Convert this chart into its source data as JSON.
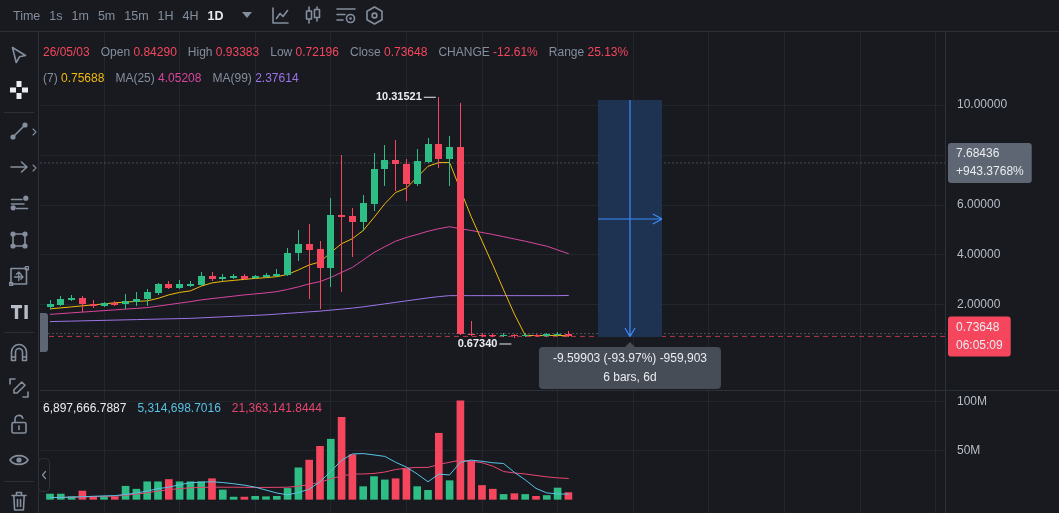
{
  "chart_data": [
    {
      "type": "candlestick",
      "categories": [
        null,
        null,
        null,
        null,
        null,
        null,
        null,
        null,
        null,
        null,
        null,
        null,
        null,
        null,
        null,
        null,
        null,
        null,
        null,
        null,
        null,
        null,
        null,
        null,
        null,
        null,
        null,
        null,
        null,
        null,
        null,
        null,
        null,
        null,
        null,
        null,
        null,
        null,
        null,
        null,
        null,
        null,
        null,
        null,
        null,
        null,
        null,
        null,
        null
      ],
      "ohlc": [
        [
          1.9,
          2.17,
          1.86,
          2.04
        ],
        [
          1.99,
          2.32,
          1.97,
          2.22
        ],
        [
          2.18,
          2.36,
          2.16,
          2.26
        ],
        [
          2.26,
          2.34,
          1.73,
          2.02
        ],
        [
          2.05,
          2.16,
          1.89,
          1.97
        ],
        [
          1.97,
          2.09,
          1.95,
          2.06
        ],
        [
          2.09,
          2.12,
          1.99,
          2.01
        ],
        [
          2.05,
          2.42,
          1.84,
          2.16
        ],
        [
          2.1,
          2.5,
          1.99,
          2.25
        ],
        [
          2.22,
          2.6,
          1.99,
          2.5
        ],
        [
          2.46,
          2.86,
          2.42,
          2.82
        ],
        [
          2.82,
          2.93,
          2.64,
          2.69
        ],
        [
          2.69,
          2.96,
          2.64,
          2.84
        ],
        [
          2.77,
          2.93,
          2.74,
          2.85
        ],
        [
          2.81,
          3.29,
          2.78,
          3.16
        ],
        [
          3.16,
          3.29,
          2.98,
          3.04
        ],
        [
          3.02,
          3.22,
          2.98,
          3.1
        ],
        [
          3.06,
          3.21,
          3.04,
          3.17
        ],
        [
          3.16,
          3.2,
          3.02,
          3.04
        ],
        [
          3.06,
          3.18,
          3.04,
          3.16
        ],
        [
          3.1,
          3.25,
          3.08,
          3.2
        ],
        [
          3.16,
          3.42,
          3.13,
          3.25
        ],
        [
          3.2,
          4.24,
          3.16,
          4.07
        ],
        [
          4.07,
          4.96,
          3.77,
          4.43
        ],
        [
          4.43,
          5.2,
          2.26,
          4.2
        ],
        [
          4.24,
          4.53,
          1.86,
          3.46
        ],
        [
          3.46,
          6.27,
          2.73,
          5.6
        ],
        [
          5.6,
          7.97,
          2.53,
          5.52
        ],
        [
          5.56,
          5.87,
          3.93,
          5.33
        ],
        [
          5.33,
          6.4,
          4.97,
          6.1
        ],
        [
          6.04,
          8.07,
          5.8,
          7.44
        ],
        [
          7.43,
          8.37,
          6.8,
          7.81
        ],
        [
          7.81,
          8.58,
          6.6,
          7.64
        ],
        [
          7.64,
          7.81,
          6.2,
          6.86
        ],
        [
          6.86,
          8.23,
          6.78,
          7.75
        ],
        [
          7.74,
          8.65,
          7.71,
          8.43
        ],
        [
          8.43,
          10.31521,
          7.5,
          7.85
        ],
        [
          7.85,
          8.74,
          6.78,
          8.31
        ],
        [
          8.31,
          10.08,
          0.8,
          0.82
        ],
        [
          0.84,
          1.35,
          0.76,
          0.78
        ],
        [
          0.8,
          0.86,
          0.74,
          0.76
        ],
        [
          0.78,
          0.83,
          0.72,
          0.74
        ],
        [
          0.74,
          0.84,
          0.72,
          0.8
        ],
        [
          0.8,
          0.82,
          0.6734,
          0.76
        ],
        [
          0.76,
          0.84,
          0.74,
          0.8
        ],
        [
          0.8,
          0.83,
          0.74,
          0.76
        ],
        [
          0.76,
          0.85,
          0.74,
          0.82
        ],
        [
          0.82,
          0.88,
          0.79,
          0.84
        ],
        [
          0.8429,
          0.93383,
          0.72196,
          0.73648
        ]
      ],
      "colors": [
        "#2ebd85",
        "#2ebd85",
        "#2ebd85",
        "#f6465d",
        "#f6465d",
        "#2ebd85",
        "#f6465d",
        "#2ebd85",
        "#2ebd85",
        "#2ebd85",
        "#2ebd85",
        "#f6465d",
        "#2ebd85",
        "#2ebd85",
        "#2ebd85",
        "#f6465d",
        "#2ebd85",
        "#2ebd85",
        "#f6465d",
        "#2ebd85",
        "#2ebd85",
        "#2ebd85",
        "#2ebd85",
        "#2ebd85",
        "#f6465d",
        "#f6465d",
        "#2ebd85",
        "#f6465d",
        "#f6465d",
        "#2ebd85",
        "#2ebd85",
        "#2ebd85",
        "#f6465d",
        "#f6465d",
        "#2ebd85",
        "#2ebd85",
        "#f6465d",
        "#2ebd85",
        "#f6465d",
        "#f6465d",
        "#f6465d",
        "#f6465d",
        "#2ebd85",
        "#f6465d",
        "#2ebd85",
        "#f6465d",
        "#2ebd85",
        "#2ebd85",
        "#f6465d"
      ],
      "series": [
        {
          "type": "line",
          "color": "#f0b90b",
          "values": [
            1.84,
            1.88,
            1.92,
            1.96,
            2.0,
            2.04,
            2.08,
            2.11,
            2.14,
            2.16,
            2.26,
            2.4,
            2.5,
            2.56,
            2.75,
            2.88,
            2.94,
            2.98,
            3.02,
            3.06,
            3.09,
            3.13,
            3.22,
            3.4,
            3.6,
            3.72,
            4.1,
            4.45,
            4.65,
            4.98,
            5.5,
            6.05,
            6.5,
            6.68,
            null,
            7.55,
            7.7,
            7.7,
            null,
            5.53,
            4.56,
            3.6,
            2.6,
            1.63,
            0.78,
            0.77,
            0.77,
            0.78,
            0.75688
          ]
        },
        {
          "type": "line",
          "color": "#d9459d",
          "values": [
            1.62,
            1.65,
            1.68,
            1.71,
            1.74,
            1.77,
            1.8,
            1.83,
            1.86,
            1.89,
            1.95,
            2.01,
            2.07,
            2.13,
            2.2,
            2.25,
            2.3,
            2.35,
            2.4,
            2.44,
            2.48,
            2.53,
            2.62,
            2.72,
            2.84,
            2.93,
            3.1,
            3.3,
            3.5,
            3.8,
            4.1,
            4.33,
            4.55,
            4.7,
            4.82,
            4.95,
            5.05,
            5.13,
            5.05,
            4.98,
            4.9,
            4.82,
            4.73,
            4.64,
            4.55,
            4.45,
            4.35,
            4.2,
            4.05208
          ]
        },
        {
          "type": "line",
          "color": "#9d74e6",
          "values": [
            1.33,
            1.34,
            1.35,
            1.36,
            1.37,
            1.38,
            1.39,
            1.4,
            1.41,
            1.42,
            1.43,
            1.44,
            1.45,
            1.46,
            1.48,
            1.5,
            1.52,
            1.54,
            1.56,
            1.58,
            1.6,
            1.63,
            1.66,
            1.69,
            1.72,
            1.75,
            1.79,
            1.83,
            1.87,
            1.92,
            1.98,
            2.04,
            2.1,
            2.16,
            2.22,
            2.28,
            2.33,
            2.37,
            null,
            2.37,
            2.37,
            2.37,
            2.37,
            2.37,
            2.37,
            2.37,
            2.37,
            2.37,
            2.37614
          ]
        }
      ],
      "ylim": [
        -1.41,
        12.93
      ],
      "yticks": [
        {
          "value": 2,
          "label": "2.00000"
        },
        {
          "value": 4,
          "label": "4.00000"
        },
        {
          "value": 6,
          "label": "6.00000"
        },
        {
          "value": 8,
          "label": null
        },
        {
          "value": 10,
          "label": "10.00000"
        }
      ],
      "grid": true,
      "ref_lines": [
        {
          "axis": "y",
          "value": 7.68436,
          "label": "7.68436",
          "color": "#5e6673",
          "line_style": "dotted"
        },
        {
          "axis": "y",
          "value": 0.73648,
          "label": "0.73648",
          "color": "#f6465d",
          "line_style": "dashed"
        },
        {
          "axis": "y",
          "value": 0.85,
          "color": "#5e6673",
          "line_style": "dotted"
        }
      ],
      "annotations": [
        "Time",
        "1s",
        "1m",
        "5m",
        "15m",
        "1H",
        "4H",
        "1D",
        "26/05/03",
        "Open 0.84290",
        "High 0.93383",
        "Low 0.72196",
        "Close 0.73648",
        "CHANGE -12.61%",
        "Range 25.13%",
        "(7) 0.75688",
        "MA(25) 4.05208",
        "MA(99) 2.37614",
        "10.31521",
        "0.67340",
        "+943.3768%",
        "06:05:09",
        "-9.59903 (-93.97%) -959,903",
        "6 bars, 6d"
      ]
    },
    {
      "type": "bar",
      "categories": [
        null,
        null,
        null,
        null,
        null,
        null,
        null,
        null,
        null,
        null,
        null,
        null,
        null,
        null,
        null,
        null,
        null,
        null,
        null,
        null,
        null,
        null,
        null,
        null,
        null,
        null,
        null,
        null,
        null,
        null,
        null,
        null,
        null,
        null,
        null,
        null,
        null,
        null,
        null,
        null,
        null,
        null,
        null,
        null,
        null,
        null,
        null,
        null,
        null
      ],
      "series": [
        {
          "values": [
            5400000,
            5400000,
            2700000,
            8500000,
            3000000,
            2700000,
            2700000,
            13400000,
            10400000,
            18000000,
            18000000,
            20300000,
            18000000,
            18000000,
            18000000,
            21100000,
            9600000,
            2300000,
            2300000,
            3100000,
            2700000,
            3100000,
            11200000,
            32300000,
            40200000,
            54300000,
            61600000,
            84000000,
            45700000,
            13000000,
            23300000,
            19900000,
            21100000,
            31400000,
            13000000,
            9200000,
            67700000,
            19100000,
            101000000,
            39400000,
            14200000,
            10400000,
            5000000,
            5800000,
            5000000,
            3100000,
            3900000,
            11600000,
            6897666.7887
          ],
          "colors": [
            "#2ebd85",
            "#2ebd85",
            "#2ebd85",
            "#f6465d",
            "#f6465d",
            "#2ebd85",
            "#f6465d",
            "#2ebd85",
            "#2ebd85",
            "#2ebd85",
            "#2ebd85",
            "#f6465d",
            "#2ebd85",
            "#2ebd85",
            "#2ebd85",
            "#f6465d",
            "#2ebd85",
            "#2ebd85",
            "#f6465d",
            "#2ebd85",
            "#2ebd85",
            "#2ebd85",
            "#2ebd85",
            "#2ebd85",
            "#f6465d",
            "#f6465d",
            "#2ebd85",
            "#f6465d",
            "#f6465d",
            "#2ebd85",
            "#2ebd85",
            "#2ebd85",
            "#f6465d",
            "#f6465d",
            "#2ebd85",
            "#2ebd85",
            "#f6465d",
            "#2ebd85",
            "#f6465d",
            "#f6465d",
            "#f6465d",
            "#f6465d",
            "#2ebd85",
            "#f6465d",
            "#2ebd85",
            "#f6465d",
            "#2ebd85",
            "#2ebd85",
            "#f6465d"
          ]
        },
        {
          "type": "line",
          "color": "#57c3e3",
          "values": [
            1900000,
            1900000,
            2300000,
            2700000,
            3100000,
            3500000,
            3800000,
            5000000,
            6500000,
            8500000,
            11000000,
            12400000,
            15000000,
            17000000,
            17600000,
            18000000,
            17200000,
            16000000,
            14500000,
            12500000,
            9500000,
            6500000,
            4600000,
            7000000,
            10400000,
            18000000,
            28500000,
            40000000,
            46500000,
            46900000,
            45500000,
            44000000,
            38000000,
            33000000,
            26000000,
            18000000,
            25800000,
            25000000,
            38000000,
            40200000,
            39000000,
            37500000,
            36700000,
            27700000,
            20000000,
            11200000,
            6600000,
            5500000,
            5314698.7016
          ]
        },
        {
          "type": "line",
          "color": "#e6466e",
          "values": [
            1900000,
            2000000,
            2100000,
            2400000,
            2700000,
            3000000,
            3300000,
            4200000,
            5300000,
            6800000,
            8500000,
            9800000,
            11000000,
            11800000,
            12200000,
            12500000,
            12400000,
            12400000,
            12300000,
            12200000,
            12200000,
            12300000,
            12400000,
            13500000,
            15000000,
            17500000,
            21000000,
            24000000,
            25800000,
            26000000,
            26500000,
            28000000,
            30500000,
            32000000,
            32700000,
            32700000,
            35700000,
            38000000,
            40200000,
            39000000,
            37500000,
            34000000,
            28500000,
            27000000,
            26000000,
            24500000,
            23000000,
            22000000,
            21363141.8444
          ]
        }
      ],
      "ylim": [
        -14000000,
        111000000
      ],
      "yticks": [
        {
          "value": 50000000,
          "label": "50M"
        },
        {
          "value": 100000000,
          "label": "100M"
        }
      ],
      "grid": true,
      "annotations": [
        "6,897,666.7887",
        "5,314,698.7016",
        "21,363,141.8444"
      ]
    }
  ]
}
